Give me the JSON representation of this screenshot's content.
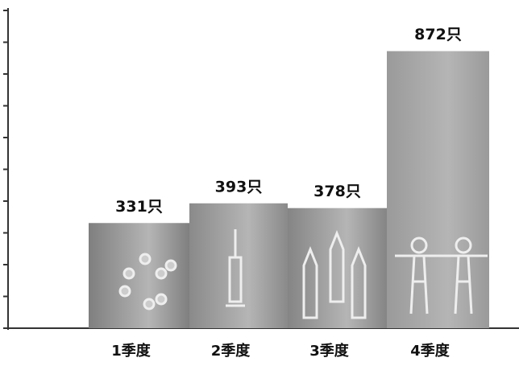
{
  "chart_data": {
    "type": "bar",
    "categories": [
      "1季度",
      "2季度",
      "3季度",
      "4季度"
    ],
    "values": [
      331,
      393,
      378,
      872
    ],
    "value_labels": [
      "331只",
      "393只",
      "378只",
      "872只"
    ],
    "colors": [
      "#7f7f7f",
      "#8a8a8a",
      "#858585",
      "#9a9a9a"
    ],
    "ylim": [
      0,
      1000
    ],
    "yticks": [
      0,
      100,
      200,
      300,
      400,
      500,
      600,
      700,
      800,
      900,
      1000
    ],
    "grid": false
  }
}
